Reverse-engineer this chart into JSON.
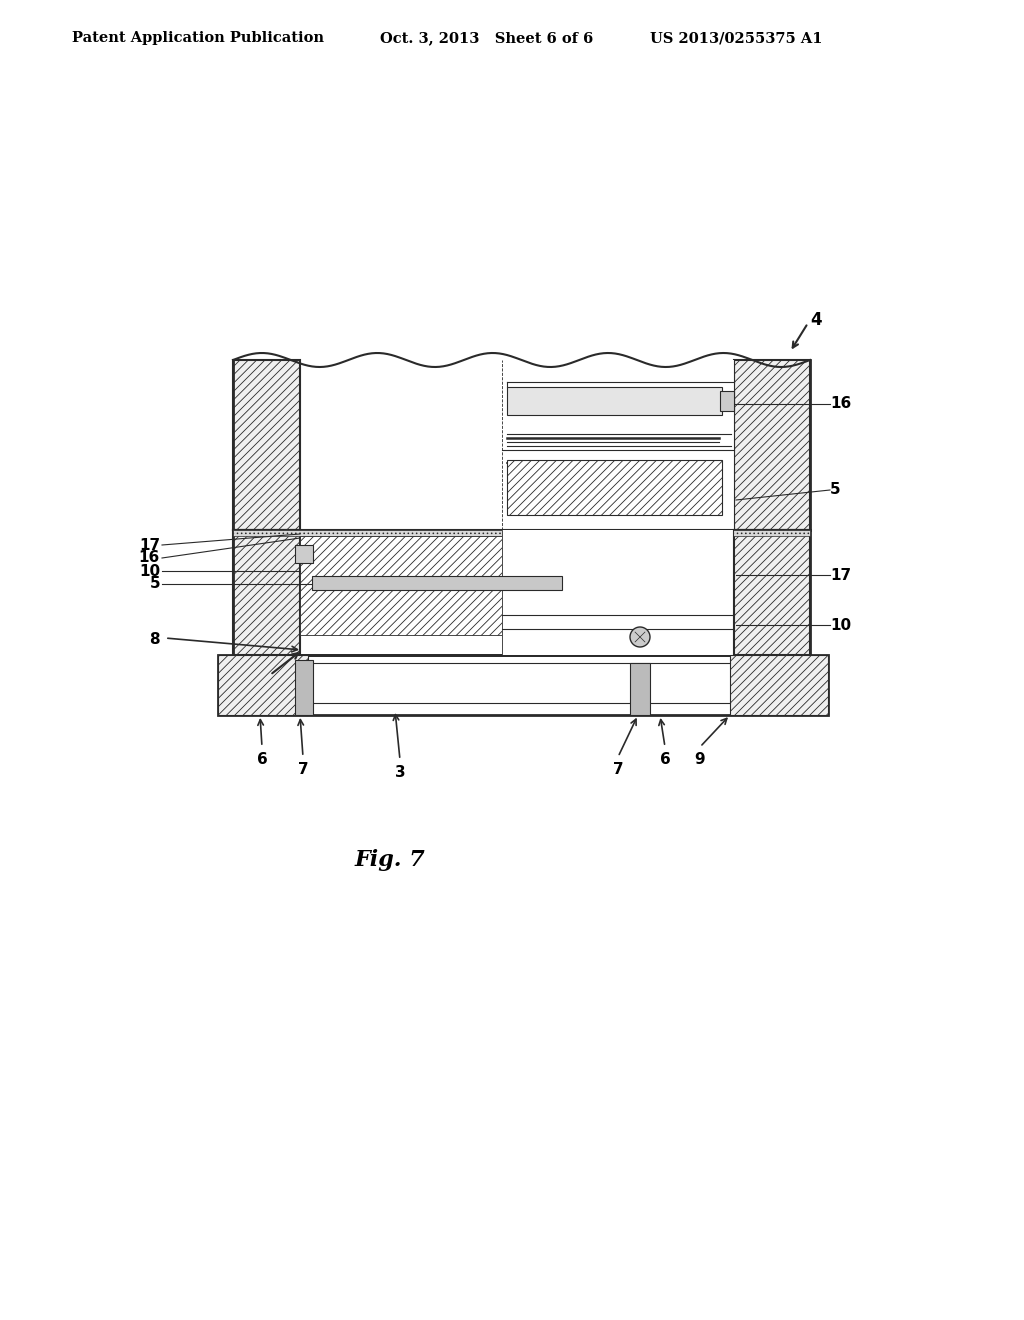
{
  "bg_color": "#ffffff",
  "header_left": "Patent Application Publication",
  "header_mid": "Oct. 3, 2013   Sheet 6 of 6",
  "header_right": "US 2013/0255375 A1",
  "figure_label": "Fig. 7",
  "line_color": "#2a2a2a",
  "hatch_lw": 0.5
}
